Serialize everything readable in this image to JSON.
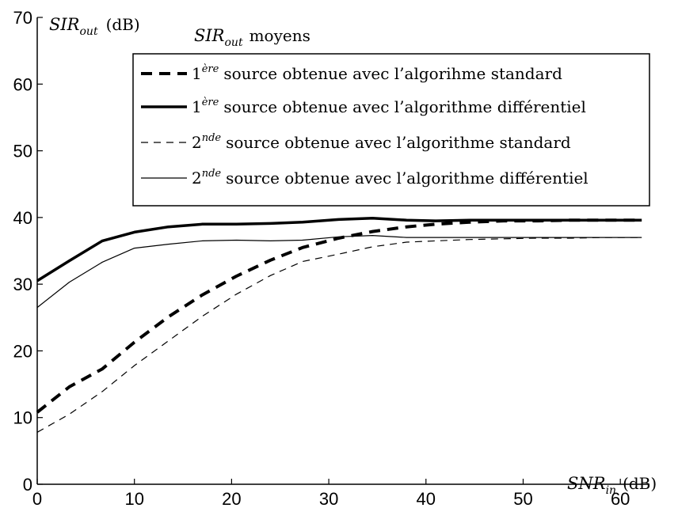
{
  "chart_data": {
    "type": "line",
    "title": "moyens",
    "title_var": "SIR",
    "title_sub": "out",
    "ylabel_var": "SIR",
    "ylabel_sub": "out",
    "ylabel_unit": "(dB)",
    "xlabel_var": "SNR",
    "xlabel_sub": "in",
    "xlabel_unit": "(dB)",
    "xlim": [
      0,
      63
    ],
    "ylim": [
      0,
      70
    ],
    "xticks": [
      "0",
      "10",
      "20",
      "30",
      "40",
      "50",
      "60"
    ],
    "yticks": [
      "0",
      "10",
      "20",
      "30",
      "40",
      "50",
      "60",
      "70"
    ],
    "grid": false,
    "legend_position": "top-right",
    "x": [
      0,
      3.3,
      6.7,
      10,
      13.5,
      17,
      20.5,
      24,
      27.3,
      31,
      34.5,
      38,
      41,
      44.5,
      48,
      51.5,
      55,
      58.5,
      62.2
    ],
    "series": [
      {
        "name": "1",
        "name_sup": "ère",
        "name_rest": "source obtenue avec l’algorihme standard",
        "style": "thick-dashed",
        "values": [
          10.8,
          14.6,
          17.3,
          21.3,
          25.1,
          28.4,
          31.2,
          33.6,
          35.5,
          36.9,
          37.9,
          38.6,
          39.0,
          39.3,
          39.5,
          39.5,
          39.6,
          39.6,
          39.6
        ]
      },
      {
        "name": "1",
        "name_sup": "ère",
        "name_rest": "source obtenue avec l’algorithme différentiel",
        "style": "thick-solid",
        "values": [
          30.5,
          33.5,
          36.5,
          37.8,
          38.6,
          39.0,
          39.0,
          39.1,
          39.3,
          39.7,
          39.9,
          39.6,
          39.5,
          39.6,
          39.6,
          39.6,
          39.6,
          39.6,
          39.6
        ]
      },
      {
        "name": "2",
        "name_sup": "nde",
        "name_rest": "source obtenue avec l’algorithme standard",
        "style": "thin-dashed",
        "values": [
          7.8,
          10.5,
          13.9,
          17.8,
          21.5,
          25.2,
          28.5,
          31.3,
          33.4,
          34.5,
          35.6,
          36.3,
          36.5,
          36.7,
          36.8,
          36.9,
          36.9,
          37.0,
          37.0
        ]
      },
      {
        "name": "2",
        "name_sup": "nde",
        "name_rest": "source obtenue avec l’algorithme différentiel",
        "style": "thin-solid",
        "values": [
          26.5,
          30.3,
          33.3,
          35.4,
          36.0,
          36.5,
          36.6,
          36.5,
          36.6,
          37.1,
          37.3,
          37.0,
          37.0,
          37.0,
          37.0,
          37.0,
          37.0,
          37.0,
          37.0
        ]
      }
    ]
  }
}
